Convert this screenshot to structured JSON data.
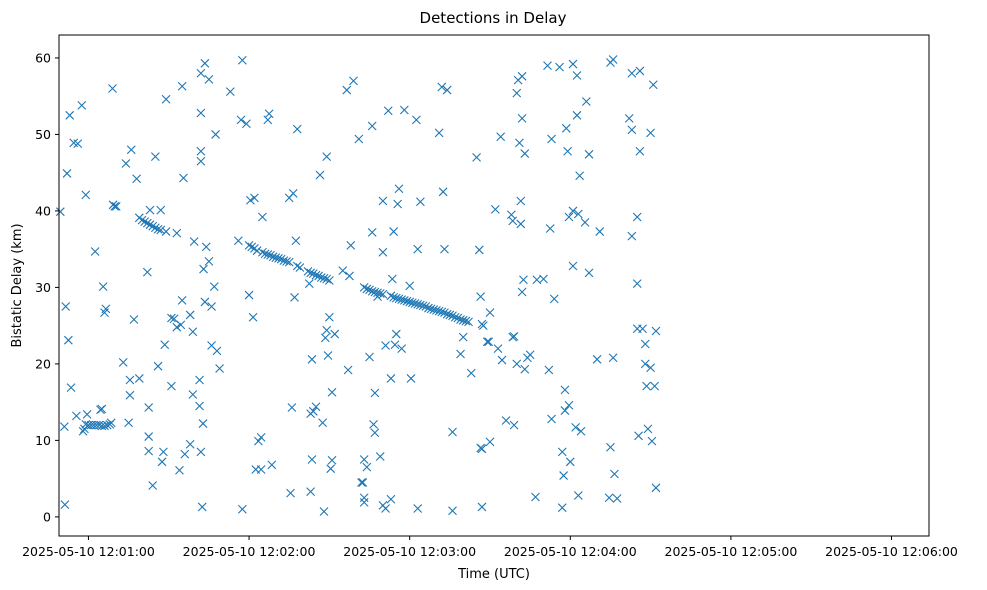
{
  "chart_data": {
    "type": "scatter",
    "title": "Detections in Delay",
    "xlabel": "Time (UTC)",
    "ylabel": "Bistatic Delay (km)",
    "marker": "x",
    "color": "#1f77b4",
    "grid": false,
    "x_unit": "seconds after 2025-05-10 12:00:00 UTC",
    "xlim": [
      49,
      374
    ],
    "ylim": [
      -2.5,
      63
    ],
    "x_ticks": [
      {
        "value": 60,
        "label": "2025-05-10 12:01:00"
      },
      {
        "value": 120,
        "label": "2025-05-10 12:02:00"
      },
      {
        "value": 180,
        "label": "2025-05-10 12:03:00"
      },
      {
        "value": 240,
        "label": "2025-05-10 12:04:00"
      },
      {
        "value": 300,
        "label": "2025-05-10 12:05:00"
      },
      {
        "value": 360,
        "label": "2025-05-10 12:06:00"
      }
    ],
    "y_ticks": [
      {
        "value": 0,
        "label": "0"
      },
      {
        "value": 10,
        "label": "10"
      },
      {
        "value": 20,
        "label": "20"
      },
      {
        "value": 30,
        "label": "30"
      },
      {
        "value": 40,
        "label": "40"
      },
      {
        "value": 50,
        "label": "50"
      },
      {
        "value": 60,
        "label": "60"
      }
    ],
    "target_track": [
      [
        69.2,
        40.8
      ],
      [
        69.8,
        40.6
      ],
      [
        70.4,
        40.6
      ],
      [
        79,
        39.1
      ],
      [
        80,
        38.8
      ],
      [
        81,
        38.6
      ],
      [
        82,
        38.4
      ],
      [
        83,
        38.2
      ],
      [
        84,
        38.0
      ],
      [
        85,
        37.8
      ],
      [
        86,
        37.6
      ],
      [
        87,
        37.5
      ],
      [
        89,
        37.3
      ],
      [
        120,
        35.5
      ],
      [
        121,
        35.3
      ],
      [
        122,
        35.1
      ],
      [
        123,
        34.8
      ],
      [
        125,
        34.6
      ],
      [
        126,
        34.4
      ],
      [
        127,
        34.3
      ],
      [
        128,
        34.2
      ],
      [
        129,
        34.0
      ],
      [
        130,
        33.9
      ],
      [
        131,
        33.8
      ],
      [
        132,
        33.7
      ],
      [
        133,
        33.5
      ],
      [
        134,
        33.4
      ],
      [
        135,
        33.3
      ],
      [
        138,
        32.8
      ],
      [
        139,
        32.6
      ],
      [
        142,
        32.1
      ],
      [
        143,
        31.9
      ],
      [
        144,
        31.8
      ],
      [
        145,
        31.6
      ],
      [
        146,
        31.5
      ],
      [
        147,
        31.3
      ],
      [
        148,
        31.2
      ],
      [
        149,
        31.1
      ],
      [
        150,
        30.9
      ],
      [
        163,
        30.0
      ],
      [
        164,
        29.8
      ],
      [
        165,
        29.7
      ],
      [
        166,
        29.5
      ],
      [
        167,
        29.4
      ],
      [
        168,
        29.3
      ],
      [
        169,
        29.2
      ],
      [
        170,
        29.1
      ],
      [
        173,
        28.9
      ],
      [
        174,
        28.7
      ],
      [
        175,
        28.6
      ],
      [
        176,
        28.5
      ],
      [
        177,
        28.4
      ],
      [
        178,
        28.3
      ],
      [
        179,
        28.2
      ],
      [
        180,
        28.1
      ],
      [
        181,
        28.0
      ],
      [
        182,
        27.9
      ],
      [
        183,
        27.8
      ],
      [
        184,
        27.7
      ],
      [
        185,
        27.6
      ],
      [
        186,
        27.5
      ],
      [
        187,
        27.3
      ],
      [
        188,
        27.2
      ],
      [
        189,
        27.1
      ],
      [
        190,
        27.0
      ],
      [
        191,
        26.9
      ],
      [
        192,
        26.8
      ],
      [
        193,
        26.7
      ],
      [
        194,
        26.5
      ],
      [
        195,
        26.4
      ],
      [
        196,
        26.3
      ],
      [
        197,
        26.1
      ],
      [
        198,
        26.0
      ],
      [
        199,
        25.8
      ],
      [
        200,
        25.7
      ],
      [
        201,
        25.6
      ],
      [
        202,
        25.5
      ],
      [
        207,
        25.2
      ],
      [
        207.5,
        25.0
      ],
      [
        59,
        12.1
      ],
      [
        60,
        12.0
      ],
      [
        61,
        12.0
      ],
      [
        62,
        12.0
      ],
      [
        63,
        12.0
      ],
      [
        64,
        12.0
      ],
      [
        65,
        11.9
      ],
      [
        66,
        11.9
      ],
      [
        67,
        12.0
      ]
    ],
    "clutter": [
      [
        49.5,
        39.9
      ],
      [
        51,
        11.8
      ],
      [
        51.2,
        1.6
      ],
      [
        51.5,
        27.5
      ],
      [
        52,
        44.9
      ],
      [
        52.5,
        23.1
      ],
      [
        53,
        52.5
      ],
      [
        53.5,
        16.9
      ],
      [
        54.5,
        48.9
      ],
      [
        55.5,
        13.2
      ],
      [
        56,
        48.8
      ],
      [
        57.5,
        53.8
      ],
      [
        58,
        11.2
      ],
      [
        58.5,
        11.5
      ],
      [
        59,
        42.1
      ],
      [
        59.5,
        13.4
      ],
      [
        62.5,
        34.7
      ],
      [
        64.5,
        14.0
      ],
      [
        65,
        14.1
      ],
      [
        65.5,
        30.1
      ],
      [
        66,
        26.7
      ],
      [
        66.5,
        27.2
      ],
      [
        68,
        12.1
      ],
      [
        68.5,
        12.3
      ],
      [
        69,
        56.0
      ],
      [
        73,
        20.2
      ],
      [
        74,
        46.2
      ],
      [
        75,
        12.3
      ],
      [
        75.5,
        17.9
      ],
      [
        75.5,
        15.9
      ],
      [
        76,
        48.0
      ],
      [
        77,
        25.8
      ],
      [
        78,
        44.2
      ],
      [
        79,
        18.1
      ],
      [
        82,
        32.0
      ],
      [
        82.5,
        8.6
      ],
      [
        82.5,
        10.5
      ],
      [
        82.5,
        14.3
      ],
      [
        83,
        40.1
      ],
      [
        84,
        4.1
      ],
      [
        85,
        47.1
      ],
      [
        86,
        19.7
      ],
      [
        87,
        40.1
      ],
      [
        87.5,
        7.2
      ],
      [
        88,
        8.5
      ],
      [
        88.5,
        22.5
      ],
      [
        89,
        54.6
      ],
      [
        91,
        26.0
      ],
      [
        91,
        17.1
      ],
      [
        92,
        25.9
      ],
      [
        93,
        37.1
      ],
      [
        93,
        24.8
      ],
      [
        94,
        6.1
      ],
      [
        94.5,
        25.1
      ],
      [
        95,
        28.3
      ],
      [
        95,
        56.3
      ],
      [
        95.5,
        44.3
      ],
      [
        96,
        8.2
      ],
      [
        98,
        26.4
      ],
      [
        98,
        9.5
      ],
      [
        99,
        16.0
      ],
      [
        99,
        24.2
      ],
      [
        99.5,
        36.0
      ],
      [
        101.5,
        14.5
      ],
      [
        101.5,
        17.9
      ],
      [
        102,
        8.5
      ],
      [
        102,
        46.5
      ],
      [
        102,
        47.8
      ],
      [
        102,
        52.8
      ],
      [
        102,
        58.0
      ],
      [
        102.5,
        1.3
      ],
      [
        102.8,
        12.2
      ],
      [
        103,
        32.4
      ],
      [
        103.5,
        28.1
      ],
      [
        103.5,
        59.3
      ],
      [
        104,
        35.3
      ],
      [
        105,
        33.4
      ],
      [
        105,
        57.2
      ],
      [
        106,
        22.4
      ],
      [
        106,
        27.5
      ],
      [
        107,
        30.1
      ],
      [
        107.5,
        50.0
      ],
      [
        108,
        21.7
      ],
      [
        109,
        19.4
      ],
      [
        113,
        55.6
      ],
      [
        116,
        36.1
      ],
      [
        117,
        51.9
      ],
      [
        117.5,
        1.0
      ],
      [
        117.5,
        59.7
      ],
      [
        119,
        51.4
      ],
      [
        120,
        29.0
      ],
      [
        120.5,
        41.4
      ],
      [
        121.5,
        26.1
      ],
      [
        122,
        41.7
      ],
      [
        122.5,
        6.2
      ],
      [
        123.5,
        9.9
      ],
      [
        124.5,
        6.2
      ],
      [
        124.5,
        10.4
      ],
      [
        125,
        39.2
      ],
      [
        127,
        51.9
      ],
      [
        127.5,
        52.7
      ],
      [
        128.5,
        6.8
      ],
      [
        135,
        41.7
      ],
      [
        135.5,
        3.1
      ],
      [
        136,
        14.3
      ],
      [
        136.5,
        42.3
      ],
      [
        137,
        28.7
      ],
      [
        137.5,
        36.1
      ],
      [
        138,
        50.7
      ],
      [
        142.5,
        30.5
      ],
      [
        143,
        3.3
      ],
      [
        143,
        13.5
      ],
      [
        143.5,
        20.6
      ],
      [
        143.5,
        7.5
      ],
      [
        144,
        13.8
      ],
      [
        145,
        14.4
      ],
      [
        146.5,
        44.7
      ],
      [
        147.5,
        12.3
      ],
      [
        148,
        0.7
      ],
      [
        148.5,
        23.4
      ],
      [
        149,
        47.1
      ],
      [
        149,
        24.4
      ],
      [
        149.5,
        21.1
      ],
      [
        150,
        26.1
      ],
      [
        150.5,
        6.3
      ],
      [
        151,
        7.4
      ],
      [
        151,
        16.3
      ],
      [
        152,
        23.9
      ],
      [
        155,
        32.2
      ],
      [
        156.5,
        55.8
      ],
      [
        157,
        19.2
      ],
      [
        157.5,
        31.5
      ],
      [
        158,
        35.5
      ],
      [
        159,
        57.0
      ],
      [
        161,
        49.4
      ],
      [
        162,
        4.5
      ],
      [
        162.5,
        4.5
      ],
      [
        163,
        7.5
      ],
      [
        163,
        1.9
      ],
      [
        163,
        2.5
      ],
      [
        164,
        6.5
      ],
      [
        165,
        20.9
      ],
      [
        166,
        51.1
      ],
      [
        166,
        37.2
      ],
      [
        166.5,
        12.1
      ],
      [
        167,
        16.2
      ],
      [
        167,
        11.0
      ],
      [
        168,
        28.8
      ],
      [
        169,
        7.9
      ],
      [
        170,
        1.5
      ],
      [
        170,
        34.6
      ],
      [
        170,
        41.3
      ],
      [
        171,
        22.4
      ],
      [
        171,
        1.1
      ],
      [
        172,
        53.1
      ],
      [
        173,
        2.3
      ],
      [
        173,
        18.1
      ],
      [
        173.5,
        31.1
      ],
      [
        174,
        37.3
      ],
      [
        174.5,
        22.5
      ],
      [
        175,
        23.9
      ],
      [
        175.5,
        40.9
      ],
      [
        176,
        42.9
      ],
      [
        177,
        22.0
      ],
      [
        178,
        53.2
      ],
      [
        180,
        30.2
      ],
      [
        180.5,
        18.1
      ],
      [
        182.5,
        51.9
      ],
      [
        183,
        1.1
      ],
      [
        183,
        35.0
      ],
      [
        184,
        41.2
      ],
      [
        191,
        50.2
      ],
      [
        192,
        56.2
      ],
      [
        192.5,
        42.5
      ],
      [
        193,
        35.0
      ],
      [
        194,
        55.8
      ],
      [
        196,
        11.1
      ],
      [
        196,
        0.8
      ],
      [
        199,
        21.3
      ],
      [
        200,
        23.5
      ],
      [
        203,
        18.8
      ],
      [
        205,
        47.0
      ],
      [
        206,
        34.9
      ],
      [
        206.5,
        28.8
      ],
      [
        206.5,
        9.0
      ],
      [
        207,
        1.3
      ],
      [
        207,
        8.9
      ],
      [
        209,
        22.9
      ],
      [
        209.5,
        22.9
      ],
      [
        210,
        26.7
      ],
      [
        210,
        9.8
      ],
      [
        212,
        40.2
      ],
      [
        213,
        22.0
      ],
      [
        214,
        49.7
      ],
      [
        214.5,
        20.5
      ],
      [
        216,
        12.6
      ],
      [
        218,
        39.5
      ],
      [
        218.5,
        38.7
      ],
      [
        218.5,
        23.5
      ],
      [
        219,
        12.0
      ],
      [
        219,
        23.6
      ],
      [
        220,
        55.4
      ],
      [
        220,
        20.0
      ],
      [
        220.5,
        57.1
      ],
      [
        221,
        48.9
      ],
      [
        221.5,
        38.3
      ],
      [
        221.5,
        41.3
      ],
      [
        222,
        52.1
      ],
      [
        222,
        57.6
      ],
      [
        222,
        29.4
      ],
      [
        222.5,
        31.0
      ],
      [
        223,
        47.5
      ],
      [
        223,
        19.3
      ],
      [
        224,
        20.8
      ],
      [
        225,
        21.2
      ],
      [
        227,
        2.6
      ],
      [
        227.5,
        31.0
      ],
      [
        230,
        31.1
      ],
      [
        231.5,
        59.0
      ],
      [
        232,
        19.2
      ],
      [
        232.5,
        37.7
      ],
      [
        233,
        49.4
      ],
      [
        233,
        12.8
      ],
      [
        234,
        28.5
      ],
      [
        236,
        58.8
      ],
      [
        237,
        8.5
      ],
      [
        237,
        1.2
      ],
      [
        237.5,
        5.4
      ],
      [
        238,
        16.6
      ],
      [
        238,
        13.9
      ],
      [
        238.5,
        50.8
      ],
      [
        239,
        47.8
      ],
      [
        239.5,
        39.2
      ],
      [
        239.5,
        14.6
      ],
      [
        240,
        7.2
      ],
      [
        241,
        59.2
      ],
      [
        241,
        40.0
      ],
      [
        241,
        32.8
      ],
      [
        242,
        11.7
      ],
      [
        242.5,
        57.7
      ],
      [
        242.5,
        52.5
      ],
      [
        243,
        2.8
      ],
      [
        243,
        39.6
      ],
      [
        243.5,
        44.6
      ],
      [
        244,
        11.2
      ],
      [
        245.5,
        38.5
      ],
      [
        246,
        54.3
      ],
      [
        247,
        47.4
      ],
      [
        247,
        31.9
      ],
      [
        250,
        20.6
      ],
      [
        251,
        37.3
      ],
      [
        254.5,
        2.5
      ],
      [
        255,
        9.1
      ],
      [
        255,
        59.4
      ],
      [
        256,
        59.8
      ],
      [
        256,
        20.8
      ],
      [
        256.5,
        5.6
      ],
      [
        257.5,
        2.4
      ],
      [
        262,
        52.1
      ],
      [
        263,
        58.0
      ],
      [
        263,
        50.6
      ],
      [
        263,
        36.7
      ],
      [
        265,
        24.6
      ],
      [
        265,
        30.5
      ],
      [
        265,
        39.2
      ],
      [
        265.5,
        10.6
      ],
      [
        266,
        58.3
      ],
      [
        266,
        47.8
      ],
      [
        267,
        24.6
      ],
      [
        268,
        22.6
      ],
      [
        268,
        20.0
      ],
      [
        268.5,
        17.1
      ],
      [
        269,
        11.5
      ],
      [
        270,
        50.2
      ],
      [
        270,
        19.5
      ],
      [
        270.5,
        9.9
      ],
      [
        271,
        56.5
      ],
      [
        271.5,
        17.1
      ],
      [
        272,
        3.8
      ],
      [
        272,
        24.3
      ]
    ]
  }
}
